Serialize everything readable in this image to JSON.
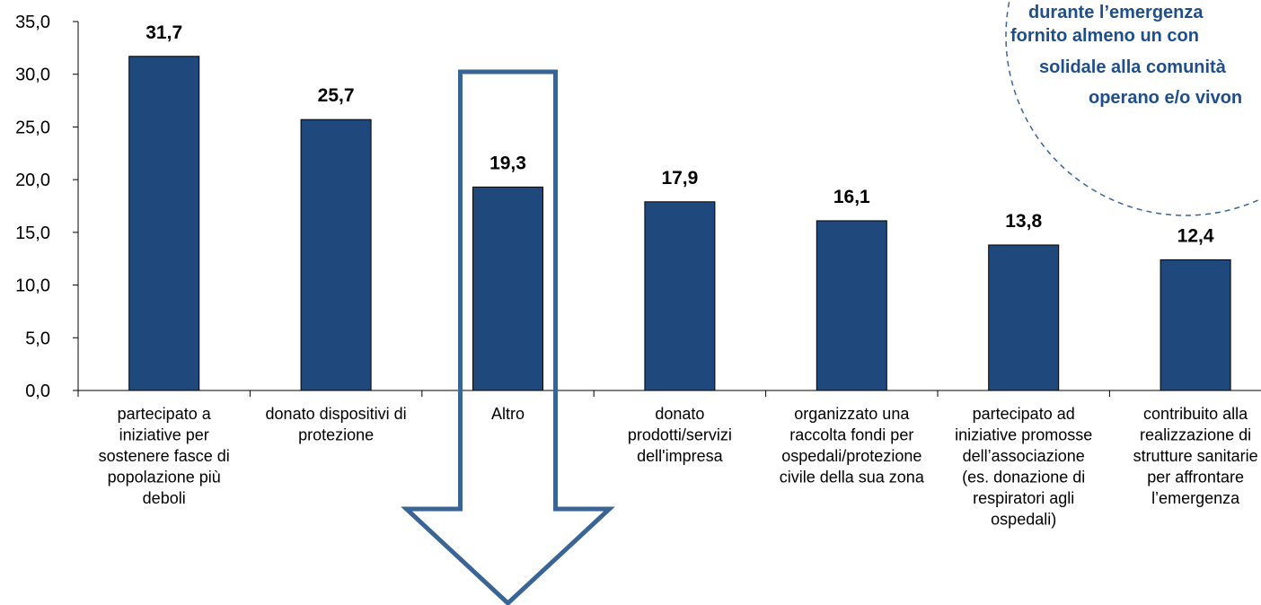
{
  "chart_data": {
    "type": "bar",
    "title": "",
    "xlabel": "",
    "ylabel": "",
    "ylim": [
      0,
      35
    ],
    "yticks": [
      "0,0",
      "5,0",
      "10,0",
      "15,0",
      "20,0",
      "25,0",
      "30,0",
      "35,0"
    ],
    "grid": false,
    "categories": [
      "partecipato a iniziative per sostenere fasce di popolazione più deboli",
      "donato dispositivi di protezione",
      "Altro",
      "donato prodotti/servizi dell'impresa",
      "organizzato una raccolta fondi per ospedali/protezione civile della sua zona",
      "partecipato ad iniziative promosse dell’associazione (es. donazione di respiratori agli ospedali)",
      "contribuito alla realizzazione di strutture sanitarie per affrontare l’emergenza"
    ],
    "category_lines": [
      [
        "partecipato a",
        "iniziative per",
        "sostenere fasce di",
        "popolazione più",
        "deboli"
      ],
      [
        "donato dispositivi di",
        "protezione"
      ],
      [
        "Altro"
      ],
      [
        "donato",
        "prodotti/servizi",
        "dell'impresa"
      ],
      [
        "organizzato una",
        "raccolta fondi per",
        "ospedali/protezione",
        "civile della sua zona"
      ],
      [
        "partecipato ad",
        "iniziative promosse",
        "dell’associazione",
        "(es. donazione di",
        "respiratori agli",
        "ospedali)"
      ],
      [
        "contribuito alla",
        "realizzazione di",
        "strutture sanitarie",
        "per affrontare",
        "l’emergenza"
      ]
    ],
    "values": [
      31.7,
      25.7,
      19.3,
      17.9,
      16.1,
      13.8,
      12.4
    ],
    "value_labels": [
      "31,7",
      "25,7",
      "19,3",
      "17,9",
      "16,1",
      "13,8",
      "12,4"
    ],
    "highlighted_category": "Altro",
    "bar_color": "#1f497d",
    "accent_color": "#3a6496",
    "annotation_lines": [
      "durante l’emergenza",
      "fornito almeno un con",
      "solidale alla comunità",
      "operano e/o vivon"
    ],
    "annotation_color": "#1f4e8c"
  }
}
